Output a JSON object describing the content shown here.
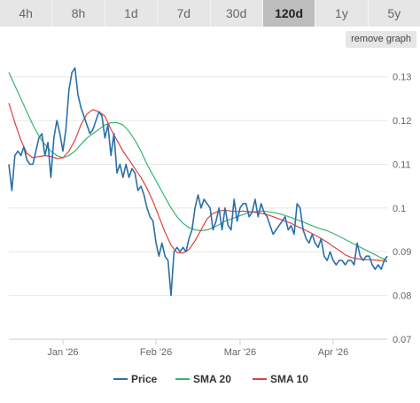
{
  "tabs": [
    {
      "label": "4h",
      "active": false
    },
    {
      "label": "8h",
      "active": false
    },
    {
      "label": "1d",
      "active": false
    },
    {
      "label": "7d",
      "active": false
    },
    {
      "label": "30d",
      "active": false
    },
    {
      "label": "120d",
      "active": true
    },
    {
      "label": "1y",
      "active": false
    },
    {
      "label": "5y",
      "active": false
    }
  ],
  "remove_button_label": "remove graph",
  "chart_data": {
    "type": "line",
    "title": "",
    "xlabel": "",
    "ylabel": "",
    "ylim": [
      0.07,
      0.135
    ],
    "yticks": [
      0.13,
      0.12,
      0.11,
      0.1,
      0.09,
      0.08,
      0.07
    ],
    "ytick_labels": [
      "0.13",
      "0.12",
      "0.11",
      "0.1",
      "0.09",
      "0.08",
      "0.07"
    ],
    "xlim": [
      "2025-12-14",
      "2026-04-19"
    ],
    "xticks": [
      {
        "date": "2026-01-01",
        "label": "Jan '26"
      },
      {
        "date": "2026-02-01",
        "label": "Feb '26"
      },
      {
        "date": "2026-03-01",
        "label": "Mar '26"
      },
      {
        "date": "2026-04-01",
        "label": "Apr '26"
      }
    ],
    "grid": true,
    "legend_position": "bottom",
    "series": [
      {
        "name": "Price",
        "color": "#2a6fa8",
        "values": [
          [
            "2025-12-14",
            0.11
          ],
          [
            "2025-12-15",
            0.104
          ],
          [
            "2025-12-16",
            0.112
          ],
          [
            "2025-12-17",
            0.113
          ],
          [
            "2025-12-18",
            0.112
          ],
          [
            "2025-12-19",
            0.114
          ],
          [
            "2025-12-20",
            0.111
          ],
          [
            "2025-12-21",
            0.11
          ],
          [
            "2025-12-22",
            0.11
          ],
          [
            "2025-12-23",
            0.113
          ],
          [
            "2025-12-24",
            0.116
          ],
          [
            "2025-12-25",
            0.117
          ],
          [
            "2025-12-26",
            0.112
          ],
          [
            "2025-12-27",
            0.115
          ],
          [
            "2025-12-28",
            0.107
          ],
          [
            "2025-12-29",
            0.116
          ],
          [
            "2025-12-30",
            0.12
          ],
          [
            "2025-12-31",
            0.117
          ],
          [
            "2026-01-01",
            0.113
          ],
          [
            "2026-01-02",
            0.118
          ],
          [
            "2026-01-03",
            0.127
          ],
          [
            "2026-01-04",
            0.131
          ],
          [
            "2026-01-05",
            0.132
          ],
          [
            "2026-01-06",
            0.126
          ],
          [
            "2026-01-07",
            0.123
          ],
          [
            "2026-01-08",
            0.121
          ],
          [
            "2026-01-09",
            0.119
          ],
          [
            "2026-01-10",
            0.117
          ],
          [
            "2026-01-11",
            0.118
          ],
          [
            "2026-01-12",
            0.12
          ],
          [
            "2026-01-13",
            0.122
          ],
          [
            "2026-01-14",
            0.121
          ],
          [
            "2026-01-15",
            0.116
          ],
          [
            "2026-01-16",
            0.119
          ],
          [
            "2026-01-17",
            0.112
          ],
          [
            "2026-01-18",
            0.117
          ],
          [
            "2026-01-19",
            0.108
          ],
          [
            "2026-01-20",
            0.11
          ],
          [
            "2026-01-21",
            0.107
          ],
          [
            "2026-01-22",
            0.11
          ],
          [
            "2026-01-23",
            0.107
          ],
          [
            "2026-01-24",
            0.109
          ],
          [
            "2026-01-25",
            0.108
          ],
          [
            "2026-01-26",
            0.104
          ],
          [
            "2026-01-27",
            0.105
          ],
          [
            "2026-01-28",
            0.103
          ],
          [
            "2026-01-29",
            0.1
          ],
          [
            "2026-01-30",
            0.098
          ],
          [
            "2026-01-31",
            0.097
          ],
          [
            "2026-02-01",
            0.092
          ],
          [
            "2026-02-02",
            0.089
          ],
          [
            "2026-02-03",
            0.092
          ],
          [
            "2026-02-04",
            0.089
          ],
          [
            "2026-02-05",
            0.088
          ],
          [
            "2026-02-06",
            0.08
          ],
          [
            "2026-02-07",
            0.09
          ],
          [
            "2026-02-08",
            0.091
          ],
          [
            "2026-02-09",
            0.09
          ],
          [
            "2026-02-10",
            0.091
          ],
          [
            "2026-02-11",
            0.09
          ],
          [
            "2026-02-12",
            0.093
          ],
          [
            "2026-02-13",
            0.095
          ],
          [
            "2026-02-14",
            0.1
          ],
          [
            "2026-02-15",
            0.103
          ],
          [
            "2026-02-16",
            0.1
          ],
          [
            "2026-02-17",
            0.102
          ],
          [
            "2026-02-18",
            0.101
          ],
          [
            "2026-02-19",
            0.1
          ],
          [
            "2026-02-20",
            0.095
          ],
          [
            "2026-02-21",
            0.097
          ],
          [
            "2026-02-22",
            0.1
          ],
          [
            "2026-02-23",
            0.095
          ],
          [
            "2026-02-24",
            0.1
          ],
          [
            "2026-02-25",
            0.096
          ],
          [
            "2026-02-26",
            0.095
          ],
          [
            "2026-02-27",
            0.102
          ],
          [
            "2026-02-28",
            0.097
          ],
          [
            "2026-03-01",
            0.1
          ],
          [
            "2026-03-02",
            0.101
          ],
          [
            "2026-03-03",
            0.101
          ],
          [
            "2026-03-04",
            0.098
          ],
          [
            "2026-03-05",
            0.099
          ],
          [
            "2026-03-06",
            0.102
          ],
          [
            "2026-03-07",
            0.098
          ],
          [
            "2026-03-08",
            0.101
          ],
          [
            "2026-03-09",
            0.099
          ],
          [
            "2026-03-10",
            0.098
          ],
          [
            "2026-03-11",
            0.096
          ],
          [
            "2026-03-12",
            0.094
          ],
          [
            "2026-03-13",
            0.095
          ],
          [
            "2026-03-14",
            0.096
          ],
          [
            "2026-03-15",
            0.097
          ],
          [
            "2026-03-16",
            0.098
          ],
          [
            "2026-03-17",
            0.095
          ],
          [
            "2026-03-18",
            0.096
          ],
          [
            "2026-03-19",
            0.094
          ],
          [
            "2026-03-20",
            0.101
          ],
          [
            "2026-03-21",
            0.1
          ],
          [
            "2026-03-22",
            0.095
          ],
          [
            "2026-03-23",
            0.093
          ],
          [
            "2026-03-24",
            0.092
          ],
          [
            "2026-03-25",
            0.094
          ],
          [
            "2026-03-26",
            0.092
          ],
          [
            "2026-03-27",
            0.091
          ],
          [
            "2026-03-28",
            0.093
          ],
          [
            "2026-03-29",
            0.089
          ],
          [
            "2026-03-30",
            0.088
          ],
          [
            "2026-03-31",
            0.09
          ],
          [
            "2026-04-01",
            0.088
          ],
          [
            "2026-04-02",
            0.087
          ],
          [
            "2026-04-03",
            0.088
          ],
          [
            "2026-04-04",
            0.088
          ],
          [
            "2026-04-05",
            0.087
          ],
          [
            "2026-04-06",
            0.088
          ],
          [
            "2026-04-07",
            0.088
          ],
          [
            "2026-04-08",
            0.087
          ],
          [
            "2026-04-09",
            0.092
          ],
          [
            "2026-04-10",
            0.089
          ],
          [
            "2026-04-11",
            0.088
          ],
          [
            "2026-04-12",
            0.089
          ],
          [
            "2026-04-13",
            0.089
          ],
          [
            "2026-04-14",
            0.087
          ],
          [
            "2026-04-15",
            0.086
          ],
          [
            "2026-04-16",
            0.087
          ],
          [
            "2026-04-17",
            0.086
          ],
          [
            "2026-04-18",
            0.088
          ],
          [
            "2026-04-19",
            0.089
          ]
        ]
      },
      {
        "name": "SMA 20",
        "color": "#3cb371",
        "values": [
          [
            "2025-12-14",
            0.131
          ],
          [
            "2025-12-16",
            0.128
          ],
          [
            "2025-12-18",
            0.125
          ],
          [
            "2025-12-20",
            0.122
          ],
          [
            "2025-12-22",
            0.119
          ],
          [
            "2025-12-24",
            0.1165
          ],
          [
            "2025-12-26",
            0.1145
          ],
          [
            "2025-12-28",
            0.113
          ],
          [
            "2025-12-30",
            0.112
          ],
          [
            "2026-01-01",
            0.1115
          ],
          [
            "2026-01-03",
            0.112
          ],
          [
            "2026-01-05",
            0.113
          ],
          [
            "2026-01-07",
            0.1145
          ],
          [
            "2026-01-09",
            0.116
          ],
          [
            "2026-01-11",
            0.117
          ],
          [
            "2026-01-13",
            0.118
          ],
          [
            "2026-01-15",
            0.119
          ],
          [
            "2026-01-17",
            0.1195
          ],
          [
            "2026-01-19",
            0.1195
          ],
          [
            "2026-01-21",
            0.119
          ],
          [
            "2026-01-23",
            0.1175
          ],
          [
            "2026-01-25",
            0.1155
          ],
          [
            "2026-01-27",
            0.113
          ],
          [
            "2026-01-29",
            0.11
          ],
          [
            "2026-01-31",
            0.1075
          ],
          [
            "2026-02-02",
            0.105
          ],
          [
            "2026-02-04",
            0.1025
          ],
          [
            "2026-02-06",
            0.1
          ],
          [
            "2026-02-08",
            0.098
          ],
          [
            "2026-02-10",
            0.0965
          ],
          [
            "2026-02-12",
            0.0955
          ],
          [
            "2026-02-14",
            0.095
          ],
          [
            "2026-02-16",
            0.0948
          ],
          [
            "2026-02-18",
            0.095
          ],
          [
            "2026-02-20",
            0.0955
          ],
          [
            "2026-02-22",
            0.0962
          ],
          [
            "2026-02-24",
            0.097
          ],
          [
            "2026-02-26",
            0.0975
          ],
          [
            "2026-02-28",
            0.098
          ],
          [
            "2026-03-02",
            0.0985
          ],
          [
            "2026-03-04",
            0.099
          ],
          [
            "2026-03-06",
            0.0992
          ],
          [
            "2026-03-08",
            0.0993
          ],
          [
            "2026-03-10",
            0.0992
          ],
          [
            "2026-03-12",
            0.099
          ],
          [
            "2026-03-14",
            0.0987
          ],
          [
            "2026-03-16",
            0.0983
          ],
          [
            "2026-03-18",
            0.0978
          ],
          [
            "2026-03-20",
            0.0973
          ],
          [
            "2026-03-22",
            0.0968
          ],
          [
            "2026-03-24",
            0.0962
          ],
          [
            "2026-03-26",
            0.0957
          ],
          [
            "2026-03-28",
            0.0952
          ],
          [
            "2026-03-30",
            0.0948
          ],
          [
            "2026-04-01",
            0.0942
          ],
          [
            "2026-04-03",
            0.0935
          ],
          [
            "2026-04-05",
            0.0928
          ],
          [
            "2026-04-07",
            0.0921
          ],
          [
            "2026-04-09",
            0.0914
          ],
          [
            "2026-04-11",
            0.0907
          ],
          [
            "2026-04-13",
            0.09
          ],
          [
            "2026-04-15",
            0.0893
          ],
          [
            "2026-04-17",
            0.0886
          ],
          [
            "2026-04-19",
            0.088
          ]
        ]
      },
      {
        "name": "SMA 10",
        "color": "#e0403a",
        "values": [
          [
            "2025-12-14",
            0.124
          ],
          [
            "2025-12-16",
            0.1195
          ],
          [
            "2025-12-18",
            0.1155
          ],
          [
            "2025-12-20",
            0.1125
          ],
          [
            "2025-12-22",
            0.1115
          ],
          [
            "2025-12-24",
            0.1118
          ],
          [
            "2025-12-26",
            0.112
          ],
          [
            "2025-12-28",
            0.1118
          ],
          [
            "2025-12-30",
            0.1113
          ],
          [
            "2026-01-01",
            0.1115
          ],
          [
            "2026-01-03",
            0.113
          ],
          [
            "2026-01-05",
            0.1155
          ],
          [
            "2026-01-07",
            0.119
          ],
          [
            "2026-01-09",
            0.1215
          ],
          [
            "2026-01-11",
            0.1225
          ],
          [
            "2026-01-13",
            0.122
          ],
          [
            "2026-01-15",
            0.121
          ],
          [
            "2026-01-17",
            0.118
          ],
          [
            "2026-01-19",
            0.1155
          ],
          [
            "2026-01-21",
            0.113
          ],
          [
            "2026-01-23",
            0.111
          ],
          [
            "2026-01-25",
            0.109
          ],
          [
            "2026-01-27",
            0.107
          ],
          [
            "2026-01-29",
            0.1045
          ],
          [
            "2026-01-31",
            0.1015
          ],
          [
            "2026-02-02",
            0.098
          ],
          [
            "2026-02-04",
            0.0945
          ],
          [
            "2026-02-06",
            0.0915
          ],
          [
            "2026-02-08",
            0.0898
          ],
          [
            "2026-02-10",
            0.0897
          ],
          [
            "2026-02-12",
            0.0905
          ],
          [
            "2026-02-14",
            0.0925
          ],
          [
            "2026-02-16",
            0.095
          ],
          [
            "2026-02-18",
            0.0975
          ],
          [
            "2026-02-20",
            0.0988
          ],
          [
            "2026-02-22",
            0.0993
          ],
          [
            "2026-02-24",
            0.0995
          ],
          [
            "2026-02-26",
            0.0993
          ],
          [
            "2026-02-28",
            0.0992
          ],
          [
            "2026-03-02",
            0.0993
          ],
          [
            "2026-03-04",
            0.0992
          ],
          [
            "2026-03-06",
            0.099
          ],
          [
            "2026-03-08",
            0.0988
          ],
          [
            "2026-03-10",
            0.0985
          ],
          [
            "2026-03-12",
            0.098
          ],
          [
            "2026-03-14",
            0.0975
          ],
          [
            "2026-03-16",
            0.097
          ],
          [
            "2026-03-18",
            0.0965
          ],
          [
            "2026-03-20",
            0.0958
          ],
          [
            "2026-03-22",
            0.0952
          ],
          [
            "2026-03-24",
            0.0945
          ],
          [
            "2026-03-26",
            0.0938
          ],
          [
            "2026-03-28",
            0.093
          ],
          [
            "2026-03-30",
            0.0922
          ],
          [
            "2026-04-01",
            0.0912
          ],
          [
            "2026-04-03",
            0.0903
          ],
          [
            "2026-04-05",
            0.0893
          ],
          [
            "2026-04-07",
            0.0887
          ],
          [
            "2026-04-09",
            0.0884
          ],
          [
            "2026-04-11",
            0.0882
          ],
          [
            "2026-04-13",
            0.0882
          ],
          [
            "2026-04-15",
            0.0881
          ],
          [
            "2026-04-17",
            0.088
          ],
          [
            "2026-04-19",
            0.0877
          ]
        ]
      }
    ]
  }
}
